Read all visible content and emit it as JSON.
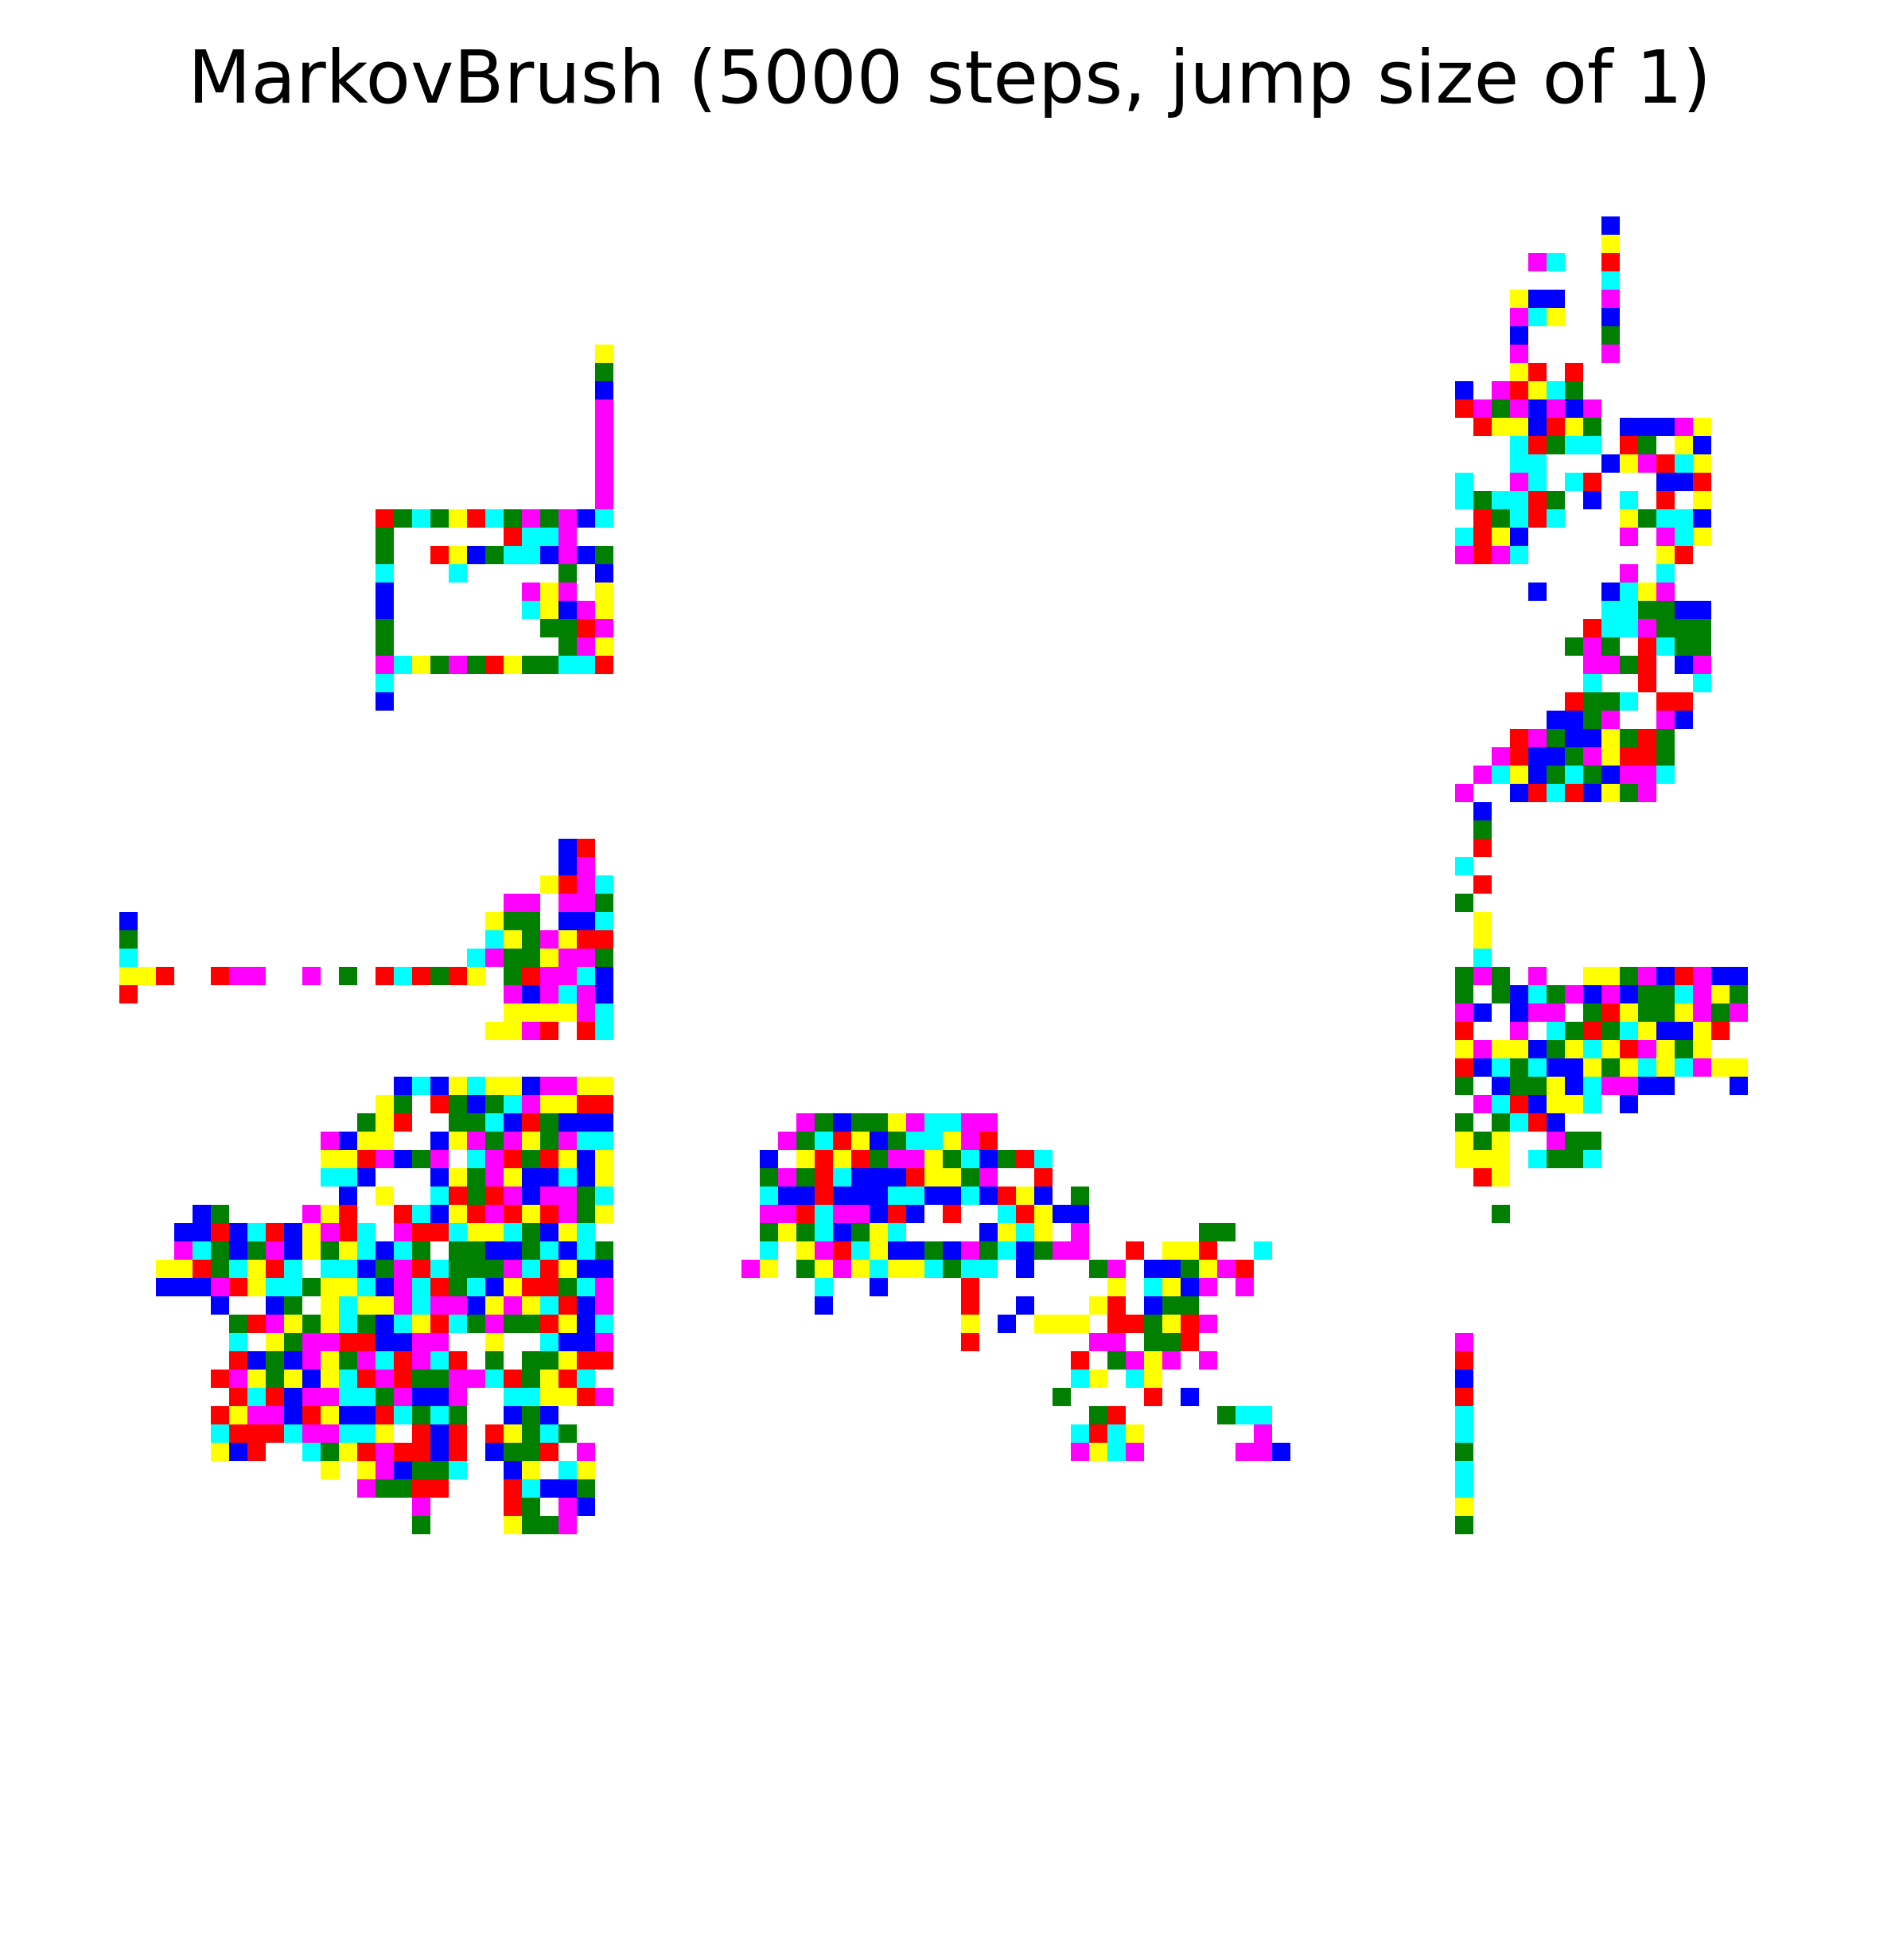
{
  "figure": {
    "title": "MarkovBrush (5000 steps, jump size of 1)"
  },
  "palette": {
    "R": "#ff0000",
    "G": "#007f00",
    "B": "#0000ff",
    "C": "#00ffff",
    "M": "#ff00ff",
    "Y": "#ffff00",
    "background": "#ffffff"
  },
  "grid": {
    "cols": 92,
    "rows": 90,
    "fill": "sparse random-walk of colored cells",
    "axes_visible": false
  }
}
